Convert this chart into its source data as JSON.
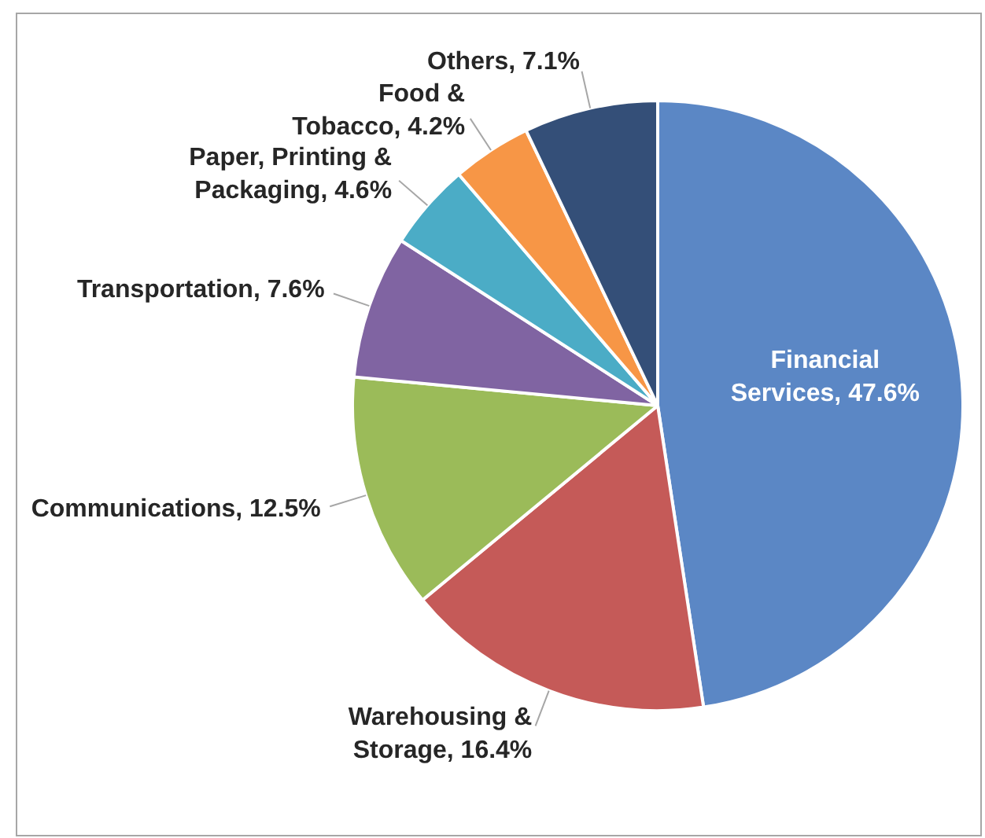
{
  "chart_data": {
    "type": "pie",
    "categories": [
      "Financial Services",
      "Warehousing & Storage",
      "Communications",
      "Transportation",
      "Paper, Printing & Packaging",
      "Food & Tobacco",
      "Others"
    ],
    "values": [
      47.6,
      16.4,
      12.5,
      7.6,
      4.6,
      4.2,
      7.1
    ],
    "value_labels": [
      "47.6%",
      "16.4%",
      "12.5%",
      "7.6%",
      "4.6%",
      "4.2%",
      "7.1%"
    ],
    "colors": [
      "#5b87c5",
      "#c55a58",
      "#9bbb59",
      "#8064a2",
      "#4bacc6",
      "#f79646",
      "#344f78"
    ],
    "legend": false
  }
}
